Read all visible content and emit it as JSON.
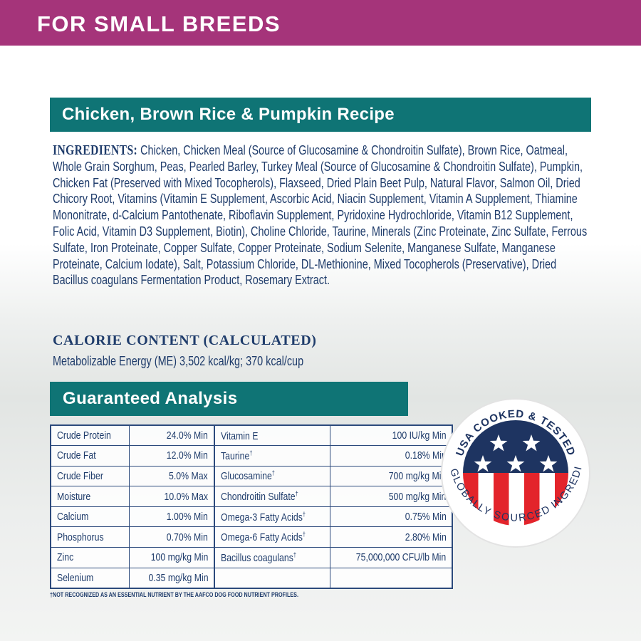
{
  "header": {
    "title": "FOR SMALL BREEDS"
  },
  "recipe": {
    "title": "Chicken, Brown Rice & Pumpkin Recipe"
  },
  "ingredients": {
    "label": "INGREDIENTS:",
    "text": "Chicken, Chicken Meal (Source of Glucosamine & Chondroitin Sulfate), Brown Rice, Oatmeal, Whole Grain Sorghum, Peas, Pearled Barley, Turkey Meal (Source of Glucosamine & Chondroitin Sulfate), Pumpkin, Chicken Fat (Preserved with Mixed Tocopherols), Flaxseed, Dried Plain Beet Pulp, Natural Flavor, Salmon Oil, Dried Chicory Root, Vitamins (Vitamin E Supplement, Ascorbic Acid, Niacin Supplement, Vitamin A Supplement, Thiamine Mononitrate, d-Calcium Pantothenate, Riboflavin Supplement, Pyridoxine Hydrochloride, Vitamin B12 Supplement, Folic Acid, Vitamin D3 Supplement, Biotin), Choline Chloride, Taurine, Minerals (Zinc Proteinate, Zinc Sulfate, Ferrous Sulfate, Iron Proteinate, Copper Sulfate, Copper Proteinate, Sodium Selenite, Manganese Sulfate, Manganese Proteinate, Calcium Iodate), Salt, Potassium Chloride, DL-Methionine, Mixed Tocopherols (Preservative), Dried Bacillus coagulans Fermentation Product, Rosemary Extract."
  },
  "calorie": {
    "heading": "CALORIE CONTENT (CALCULATED)",
    "text": "Metabolizable Energy (ME) 3,502 kcal/kg; 370 kcal/cup"
  },
  "analysis": {
    "title": "Guaranteed Analysis",
    "left": [
      [
        "Crude Protein",
        "24.0% Min"
      ],
      [
        "Crude Fat",
        "12.0% Min"
      ],
      [
        "Crude Fiber",
        "5.0% Max"
      ],
      [
        "Moisture",
        "10.0% Max"
      ],
      [
        "Calcium",
        "1.00% Min"
      ],
      [
        "Phosphorus",
        "0.70% Min"
      ],
      [
        "Zinc",
        "100 mg/kg Min"
      ],
      [
        "Selenium",
        "0.35 mg/kg Min"
      ]
    ],
    "right": [
      [
        "Vitamin E",
        "",
        "100 IU/kg Min"
      ],
      [
        "Taurine",
        "†",
        "0.18% Min"
      ],
      [
        "Glucosamine",
        "†",
        "700 mg/kg Min"
      ],
      [
        "Chondroitin Sulfate",
        "†",
        "500 mg/kg Min"
      ],
      [
        "Omega-3 Fatty Acids",
        "†",
        "0.75% Min"
      ],
      [
        "Omega-6 Fatty Acids",
        "†",
        "2.80% Min"
      ],
      [
        "Bacillus coagulans",
        "†",
        "75,000,000 CFU/lb Min"
      ],
      [
        "",
        "",
        ""
      ]
    ],
    "footnote": "†NOT RECOGNIZED AS AN ESSENTIAL NUTRIENT BY THE AAFCO DOG FOOD NUTRIENT PROFILES."
  },
  "badge": {
    "top": "USA COOKED & TESTED",
    "bottom": "WITH GLOBALLY SOURCED INGREDIENTS",
    "colors": {
      "navy": "#1e3461",
      "red": "#e3242b"
    }
  },
  "colors": {
    "magenta": "#a5347a",
    "teal": "#0f7475",
    "navy": "#1f3c6b"
  }
}
